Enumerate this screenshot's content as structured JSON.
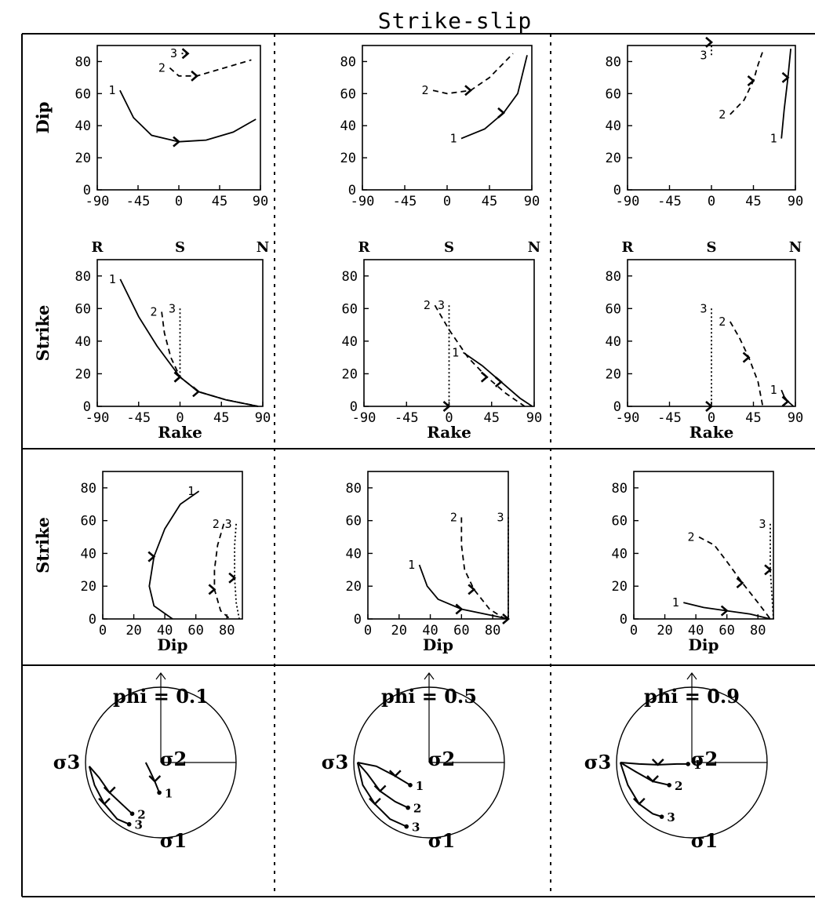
{
  "title": "Strike-slip",
  "rake_markers": [
    "R",
    "S",
    "N"
  ],
  "axis_labels": {
    "dip": "Dip",
    "strike": "Strike",
    "rake": "Rake"
  },
  "curve_labels": [
    "1",
    "2",
    "3"
  ],
  "stress_labels": {
    "s1": "σ1",
    "s2": "σ2",
    "s3": "σ3"
  },
  "ticks": {
    "rake": [
      "-90",
      "-45",
      "0",
      "45",
      "90"
    ],
    "dip_y": [
      "0",
      "20",
      "40",
      "60",
      "80"
    ],
    "strike_y": [
      "0",
      "20",
      "40",
      "60",
      "80"
    ],
    "dip_x": [
      "0",
      "20",
      "40",
      "60",
      "80"
    ]
  },
  "chart_data": [
    {
      "type": "line",
      "panel": "dip-vs-rake",
      "column": "phi = 0.1",
      "xlabel": "",
      "ylabel": "Dip",
      "xlim": [
        -90,
        90
      ],
      "ylim": [
        0,
        90
      ],
      "series": [
        {
          "name": "1",
          "style": "solid",
          "x": [
            -65,
            -50,
            -30,
            0,
            30,
            60,
            85
          ],
          "y": [
            62,
            45,
            34,
            30,
            31,
            36,
            44
          ]
        },
        {
          "name": "2",
          "style": "dashed",
          "x": [
            -10,
            0,
            20,
            50,
            80
          ],
          "y": [
            76,
            71,
            71,
            76,
            81
          ]
        },
        {
          "name": "3",
          "style": "dotted",
          "x": [
            3,
            10
          ],
          "y": [
            85,
            85
          ]
        }
      ]
    },
    {
      "type": "line",
      "panel": "dip-vs-rake",
      "column": "phi = 0.5",
      "xlabel": "",
      "ylabel": "Dip",
      "xlim": [
        -90,
        90
      ],
      "ylim": [
        0,
        90
      ],
      "series": [
        {
          "name": "1",
          "style": "solid",
          "x": [
            15,
            40,
            60,
            75,
            85
          ],
          "y": [
            32,
            38,
            48,
            60,
            84
          ]
        },
        {
          "name": "2",
          "style": "dashed",
          "x": [
            -15,
            0,
            25,
            45,
            70
          ],
          "y": [
            62,
            60,
            62,
            70,
            85
          ]
        },
        {
          "name": "3",
          "style": "dotted",
          "x": [],
          "y": []
        }
      ]
    },
    {
      "type": "line",
      "panel": "dip-vs-rake",
      "column": "phi = 0.9",
      "xlabel": "",
      "ylabel": "Dip",
      "xlim": [
        -90,
        90
      ],
      "ylim": [
        0,
        90
      ],
      "series": [
        {
          "name": "1",
          "style": "solid",
          "x": [
            75,
            78,
            82,
            85
          ],
          "y": [
            32,
            50,
            70,
            88
          ]
        },
        {
          "name": "2",
          "style": "dashed",
          "x": [
            20,
            35,
            45,
            50,
            56
          ],
          "y": [
            47,
            56,
            68,
            78,
            88
          ]
        },
        {
          "name": "3",
          "style": "dotted",
          "x": [
            0,
            0
          ],
          "y": [
            84,
            92
          ]
        }
      ]
    },
    {
      "type": "line",
      "panel": "strike-vs-rake",
      "column": "phi = 0.1",
      "xlabel": "Rake",
      "ylabel": "Strike",
      "xlim": [
        -90,
        90
      ],
      "ylim": [
        0,
        90
      ],
      "series": [
        {
          "name": "1",
          "style": "solid",
          "x": [
            -65,
            -45,
            -25,
            0,
            20,
            50,
            85
          ],
          "y": [
            78,
            55,
            37,
            18,
            9,
            4,
            0
          ]
        },
        {
          "name": "2",
          "style": "dashed",
          "x": [
            -20,
            -17,
            -10,
            0,
            20,
            50,
            85
          ],
          "y": [
            58,
            45,
            30,
            18,
            9,
            4,
            0
          ]
        },
        {
          "name": "3",
          "style": "dotted",
          "x": [
            0,
            0,
            20,
            50,
            85
          ],
          "y": [
            60,
            18,
            9,
            4,
            0
          ]
        }
      ]
    },
    {
      "type": "line",
      "panel": "strike-vs-rake",
      "column": "phi = 0.5",
      "xlabel": "Rake",
      "ylabel": "Strike",
      "xlim": [
        -90,
        90
      ],
      "ylim": [
        0,
        90
      ],
      "series": [
        {
          "name": "1",
          "style": "solid",
          "x": [
            15,
            35,
            55,
            75,
            88
          ],
          "y": [
            33,
            25,
            15,
            5,
            0
          ]
        },
        {
          "name": "2",
          "style": "dashed",
          "x": [
            -15,
            0,
            20,
            40,
            60,
            80
          ],
          "y": [
            62,
            47,
            30,
            18,
            8,
            0
          ]
        },
        {
          "name": "3",
          "style": "dotted",
          "x": [
            0,
            0
          ],
          "y": [
            62,
            0
          ]
        }
      ]
    },
    {
      "type": "line",
      "panel": "strike-vs-rake",
      "column": "phi = 0.9",
      "xlabel": "Rake",
      "ylabel": "Strike",
      "xlim": [
        -90,
        90
      ],
      "ylim": [
        0,
        90
      ],
      "series": [
        {
          "name": "1",
          "style": "solid",
          "x": [
            75,
            78,
            82,
            88
          ],
          "y": [
            10,
            6,
            3,
            0
          ]
        },
        {
          "name": "2",
          "style": "dashed",
          "x": [
            20,
            30,
            40,
            50,
            55
          ],
          "y": [
            52,
            42,
            30,
            15,
            0
          ]
        },
        {
          "name": "3",
          "style": "dotted",
          "x": [
            0,
            0
          ],
          "y": [
            60,
            0
          ]
        }
      ]
    },
    {
      "type": "line",
      "panel": "strike-vs-dip",
      "column": "phi = 0.1",
      "xlabel": "Dip",
      "ylabel": "Strike",
      "xlim": [
        0,
        90
      ],
      "ylim": [
        0,
        90
      ],
      "series": [
        {
          "name": "1",
          "style": "solid",
          "x": [
            62,
            50,
            40,
            33,
            30,
            33,
            45
          ],
          "y": [
            78,
            70,
            55,
            38,
            20,
            8,
            0
          ]
        },
        {
          "name": "2",
          "style": "dashed",
          "x": [
            78,
            74,
            72,
            72,
            76,
            82
          ],
          "y": [
            58,
            45,
            30,
            18,
            5,
            0
          ]
        },
        {
          "name": "3",
          "style": "dotted",
          "x": [
            86,
            85,
            85,
            86,
            88
          ],
          "y": [
            58,
            45,
            25,
            10,
            0
          ]
        }
      ]
    },
    {
      "type": "line",
      "panel": "strike-vs-dip",
      "column": "phi = 0.5",
      "xlabel": "Dip",
      "ylabel": "Strike",
      "xlim": [
        0,
        90
      ],
      "ylim": [
        0,
        90
      ],
      "series": [
        {
          "name": "1",
          "style": "solid",
          "x": [
            33,
            38,
            45,
            60,
            80,
            90
          ],
          "y": [
            33,
            20,
            12,
            6,
            2,
            0
          ]
        },
        {
          "name": "2",
          "style": "dashed",
          "x": [
            60,
            60,
            62,
            68,
            78,
            88
          ],
          "y": [
            62,
            45,
            30,
            18,
            6,
            0
          ]
        },
        {
          "name": "3",
          "style": "dotted",
          "x": [
            90,
            90
          ],
          "y": [
            62,
            0
          ]
        }
      ]
    },
    {
      "type": "line",
      "panel": "strike-vs-dip",
      "column": "phi = 0.9",
      "xlabel": "Dip",
      "ylabel": "Strike",
      "xlim": [
        0,
        90
      ],
      "ylim": [
        0,
        90
      ],
      "series": [
        {
          "name": "1",
          "style": "solid",
          "x": [
            32,
            45,
            60,
            75,
            88
          ],
          "y": [
            10,
            7,
            5,
            3,
            0
          ]
        },
        {
          "name": "2",
          "style": "dashed",
          "x": [
            42,
            52,
            60,
            70,
            80,
            88
          ],
          "y": [
            50,
            45,
            35,
            22,
            10,
            0
          ]
        },
        {
          "name": "3",
          "style": "dotted",
          "x": [
            88,
            88,
            90
          ],
          "y": [
            58,
            30,
            0
          ]
        }
      ]
    }
  ],
  "stereonets": [
    {
      "label": "phi = 0.1",
      "curves": [
        {
          "name": "1",
          "pts": [
            [
              -0.2,
              0.0
            ],
            [
              -0.15,
              -0.1
            ],
            [
              -0.08,
              -0.25
            ],
            [
              -0.02,
              -0.4
            ]
          ]
        },
        {
          "name": "2",
          "pts": [
            [
              -0.95,
              -0.05
            ],
            [
              -0.82,
              -0.2
            ],
            [
              -0.68,
              -0.4
            ],
            [
              -0.52,
              -0.55
            ],
            [
              -0.38,
              -0.68
            ]
          ]
        },
        {
          "name": "3",
          "pts": [
            [
              -0.95,
              -0.05
            ],
            [
              -0.88,
              -0.3
            ],
            [
              -0.75,
              -0.55
            ],
            [
              -0.58,
              -0.75
            ],
            [
              -0.42,
              -0.82
            ]
          ]
        }
      ]
    },
    {
      "label": "phi = 0.5",
      "curves": [
        {
          "name": "1",
          "pts": [
            [
              -0.95,
              0.0
            ],
            [
              -0.7,
              -0.05
            ],
            [
              -0.45,
              -0.18
            ],
            [
              -0.25,
              -0.3
            ]
          ]
        },
        {
          "name": "2",
          "pts": [
            [
              -0.95,
              0.0
            ],
            [
              -0.82,
              -0.15
            ],
            [
              -0.65,
              -0.38
            ],
            [
              -0.45,
              -0.52
            ],
            [
              -0.28,
              -0.6
            ]
          ]
        },
        {
          "name": "3",
          "pts": [
            [
              -0.95,
              0.0
            ],
            [
              -0.88,
              -0.3
            ],
            [
              -0.72,
              -0.55
            ],
            [
              -0.52,
              -0.75
            ],
            [
              -0.3,
              -0.85
            ]
          ]
        }
      ]
    },
    {
      "label": "phi = 0.9",
      "curves": [
        {
          "name": "1",
          "pts": [
            [
              -0.95,
              0.0
            ],
            [
              -0.7,
              -0.02
            ],
            [
              -0.45,
              -0.03
            ],
            [
              -0.2,
              -0.02
            ],
            [
              -0.05,
              -0.02
            ]
          ]
        },
        {
          "name": "2",
          "pts": [
            [
              -0.95,
              0.0
            ],
            [
              -0.75,
              -0.12
            ],
            [
              -0.52,
              -0.25
            ],
            [
              -0.3,
              -0.3
            ]
          ]
        },
        {
          "name": "3",
          "pts": [
            [
              -0.95,
              0.0
            ],
            [
              -0.85,
              -0.3
            ],
            [
              -0.7,
              -0.55
            ],
            [
              -0.52,
              -0.68
            ],
            [
              -0.4,
              -0.72
            ]
          ]
        }
      ]
    }
  ]
}
